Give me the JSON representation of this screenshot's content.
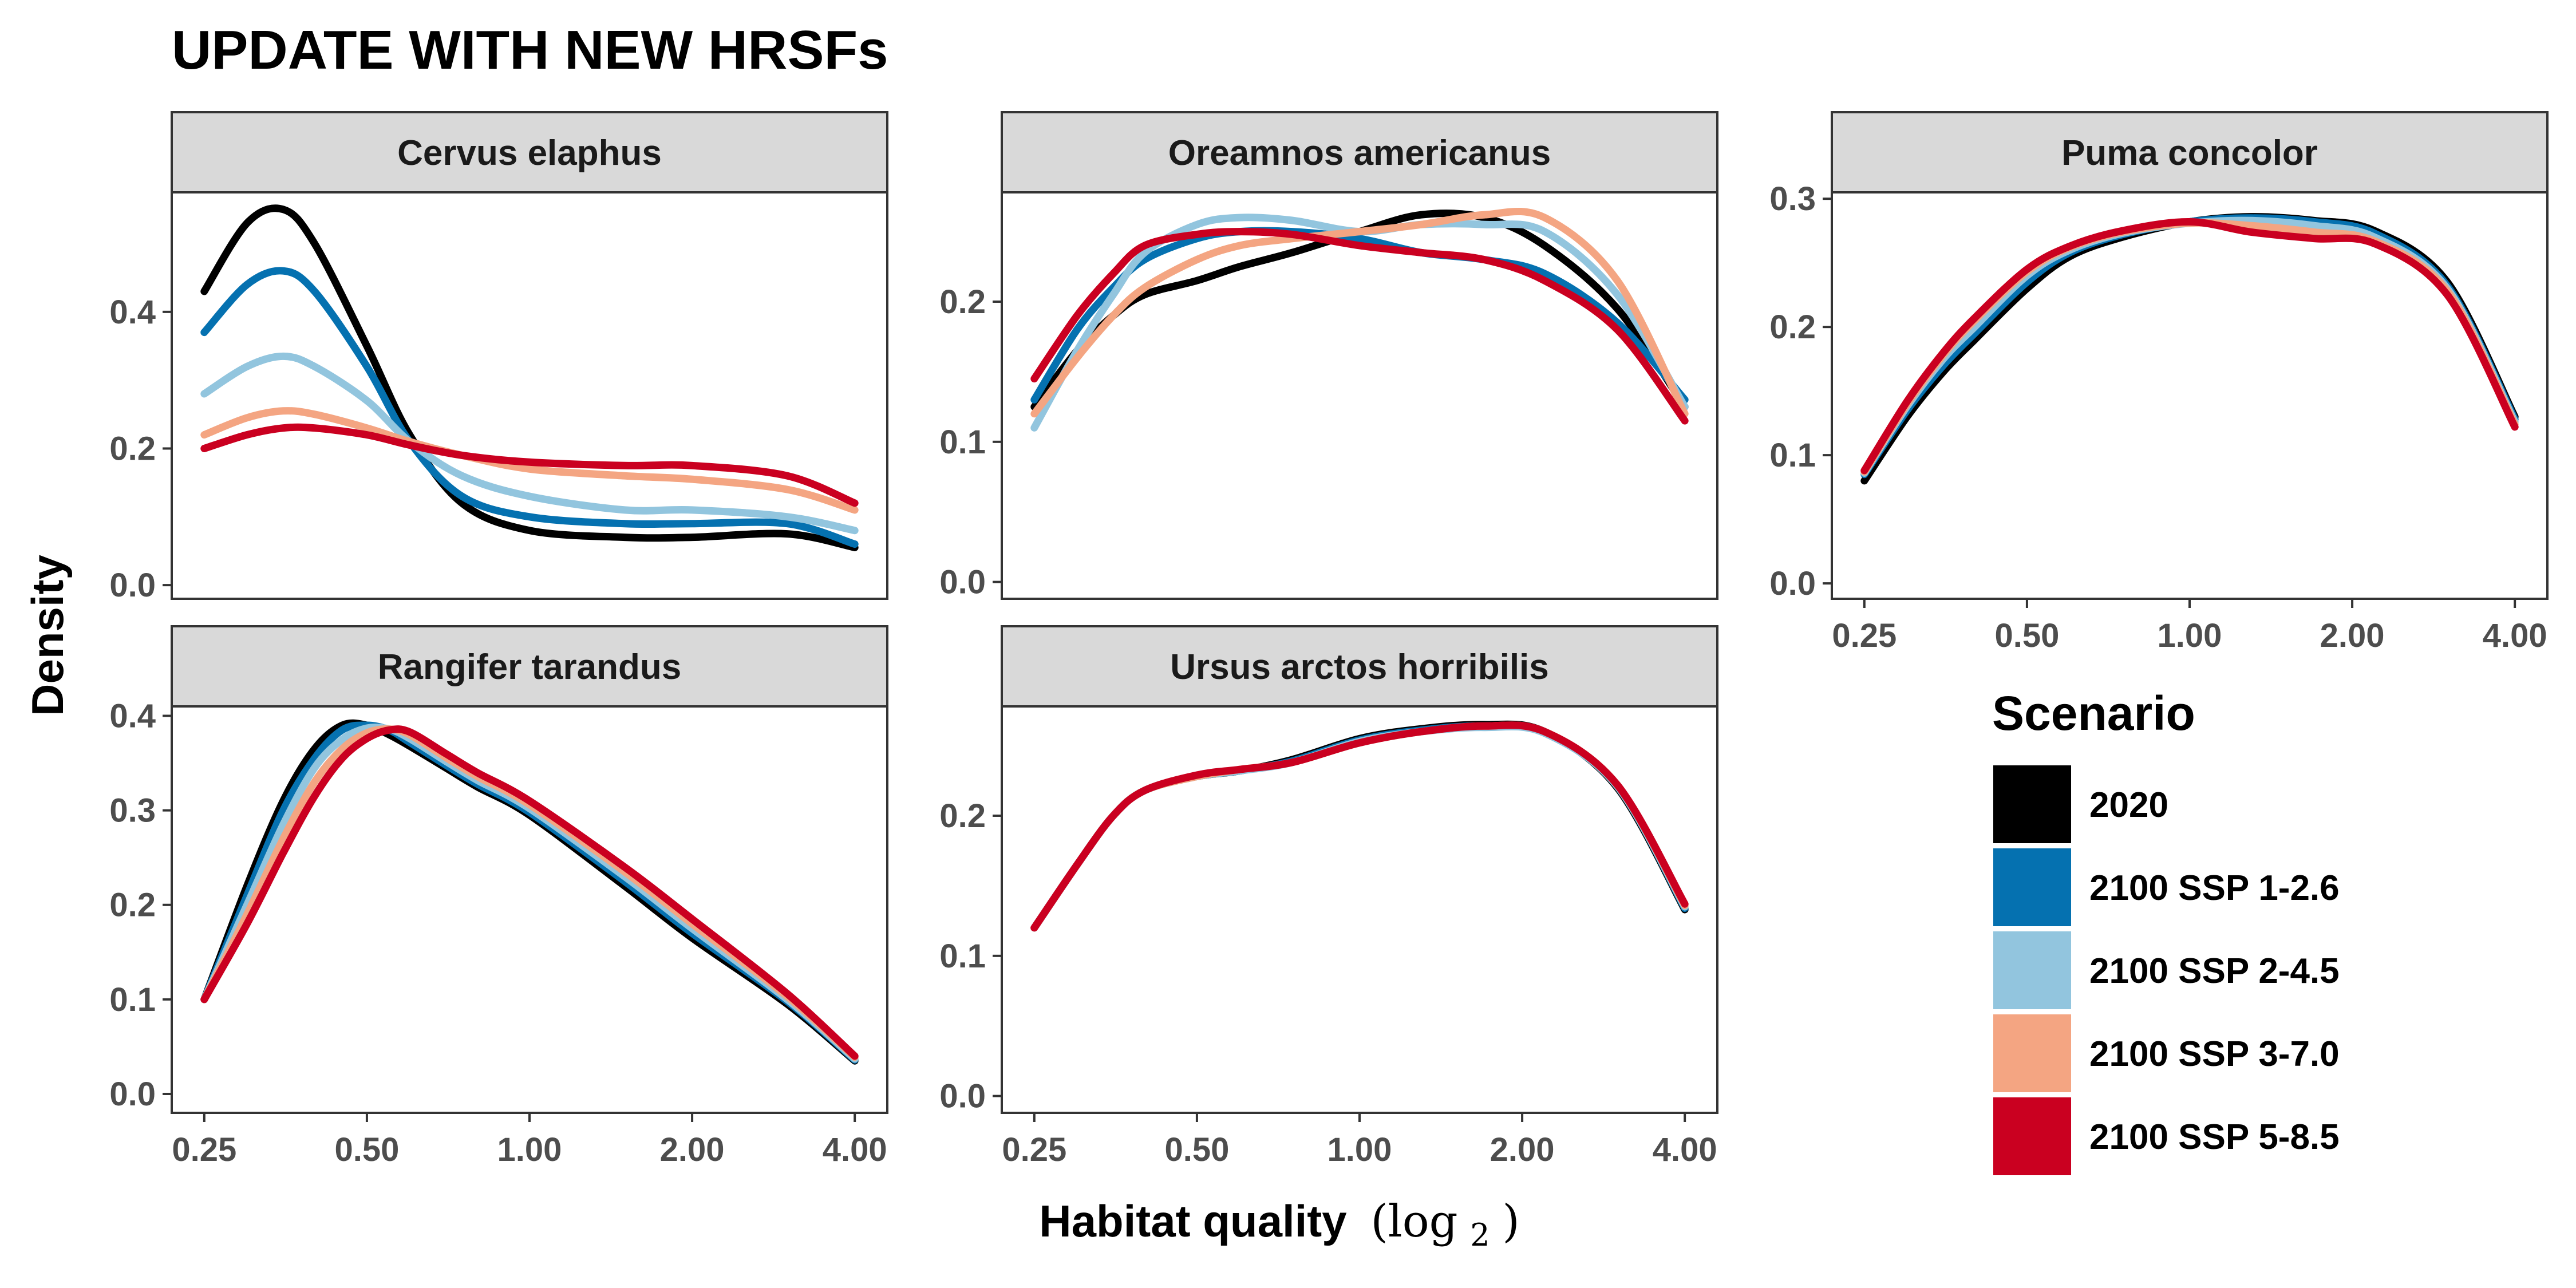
{
  "chart_data": {
    "type": "line",
    "title": "UPDATE WITH NEW HRSFs",
    "xlabel": "Habitat quality",
    "xlabel_math": "(log",
    "xlabel_sub": "2",
    "xlabel_close": ")",
    "ylabel": "Density",
    "x_scale": "log2",
    "x_ticks": [
      0.25,
      0.5,
      1,
      2,
      4
    ],
    "x_tick_labels": [
      "0.25",
      "0.50",
      "1.00",
      "2.00",
      "4.00"
    ],
    "legend": {
      "title": "Scenario",
      "position": "right",
      "entries": [
        {
          "label": "2020",
          "color": "#000000"
        },
        {
          "label": "2100 SSP 1-2.6",
          "color": "#0571b0"
        },
        {
          "label": "2100 SSP 2-4.5",
          "color": "#92c5de"
        },
        {
          "label": "2100 SSP 3-7.0",
          "color": "#f4a582"
        },
        {
          "label": "2100 SSP 5-8.5",
          "color": "#ca0020"
        }
      ]
    },
    "panels": [
      {
        "title": "Cervus elaphus",
        "ylim": [
          -0.02,
          0.575
        ],
        "y_ticks": [
          0,
          0.2,
          0.4
        ],
        "y_tick_labels": [
          "0.0",
          "0.2",
          "0.4"
        ],
        "x": [
          0.25,
          0.3,
          0.35,
          0.4,
          0.5,
          0.6,
          0.75,
          1.0,
          1.5,
          2.0,
          3.0,
          4.0
        ],
        "series": [
          {
            "name": "2020",
            "values": [
              0.43,
              0.53,
              0.55,
              0.5,
              0.35,
              0.22,
              0.12,
              0.08,
              0.07,
              0.07,
              0.075,
              0.055
            ]
          },
          {
            "name": "2100 SSP 1-2.6",
            "values": [
              0.37,
              0.44,
              0.46,
              0.43,
              0.32,
              0.21,
              0.13,
              0.1,
              0.09,
              0.09,
              0.09,
              0.06
            ]
          },
          {
            "name": "2100 SSP 2-4.5",
            "values": [
              0.28,
              0.32,
              0.335,
              0.32,
              0.27,
              0.21,
              0.16,
              0.13,
              0.11,
              0.11,
              0.1,
              0.08
            ]
          },
          {
            "name": "2100 SSP 3-7.0",
            "values": [
              0.22,
              0.245,
              0.255,
              0.25,
              0.23,
              0.21,
              0.19,
              0.17,
              0.16,
              0.155,
              0.14,
              0.11
            ]
          },
          {
            "name": "2100 SSP 5-8.5",
            "values": [
              0.2,
              0.22,
              0.23,
              0.23,
              0.22,
              0.205,
              0.19,
              0.18,
              0.175,
              0.175,
              0.16,
              0.12
            ]
          }
        ]
      },
      {
        "title": "Oreamnos americanus",
        "ylim": [
          -0.012,
          0.278
        ],
        "y_ticks": [
          0,
          0.1,
          0.2
        ],
        "y_tick_labels": [
          "0.0",
          "0.1",
          "0.2"
        ],
        "x": [
          0.25,
          0.3,
          0.35,
          0.4,
          0.5,
          0.6,
          0.75,
          1.0,
          1.3,
          1.7,
          2.2,
          3.0,
          4.0
        ],
        "series": [
          {
            "name": "2020",
            "values": [
              0.125,
              0.165,
              0.19,
              0.205,
              0.215,
              0.225,
              0.235,
              0.25,
              0.262,
              0.26,
              0.24,
              0.195,
              0.125
            ]
          },
          {
            "name": "2100 SSP 1-2.6",
            "values": [
              0.13,
              0.18,
              0.21,
              0.23,
              0.245,
              0.25,
              0.25,
              0.245,
              0.235,
              0.23,
              0.22,
              0.185,
              0.13
            ]
          },
          {
            "name": "2100 SSP 2-4.5",
            "values": [
              0.11,
              0.165,
              0.205,
              0.235,
              0.255,
              0.26,
              0.258,
              0.25,
              0.255,
              0.255,
              0.25,
              0.205,
              0.125
            ]
          },
          {
            "name": "2100 SSP 3-7.0",
            "values": [
              0.12,
              0.16,
              0.19,
              0.21,
              0.23,
              0.24,
              0.245,
              0.25,
              0.255,
              0.262,
              0.26,
              0.215,
              0.12
            ]
          },
          {
            "name": "2100 SSP 5-8.5",
            "values": [
              0.145,
              0.19,
              0.22,
              0.24,
              0.248,
              0.25,
              0.248,
              0.24,
              0.235,
              0.23,
              0.215,
              0.18,
              0.115
            ]
          }
        ]
      },
      {
        "title": "Puma concolor",
        "ylim": [
          -0.012,
          0.305
        ],
        "y_ticks": [
          0,
          0.1,
          0.2,
          0.3
        ],
        "y_tick_labels": [
          "0.0",
          "0.1",
          "0.2",
          "0.3"
        ],
        "x": [
          0.25,
          0.3,
          0.35,
          0.4,
          0.5,
          0.6,
          0.75,
          1.0,
          1.3,
          1.7,
          2.2,
          3.0,
          4.0
        ],
        "series": [
          {
            "name": "2020",
            "values": [
              0.08,
              0.13,
              0.165,
              0.19,
              0.23,
              0.255,
              0.27,
              0.282,
              0.286,
              0.283,
              0.275,
              0.235,
              0.13
            ]
          },
          {
            "name": "2100 SSP 1-2.6",
            "values": [
              0.085,
              0.135,
              0.17,
              0.195,
              0.235,
              0.258,
              0.272,
              0.282,
              0.285,
              0.282,
              0.273,
              0.232,
              0.128
            ]
          },
          {
            "name": "2100 SSP 2-4.5",
            "values": [
              0.086,
              0.138,
              0.175,
              0.2,
              0.24,
              0.26,
              0.273,
              0.281,
              0.283,
              0.279,
              0.27,
              0.23,
              0.126
            ]
          },
          {
            "name": "2100 SSP 3-7.0",
            "values": [
              0.087,
              0.14,
              0.178,
              0.205,
              0.243,
              0.262,
              0.274,
              0.281,
              0.279,
              0.274,
              0.267,
              0.228,
              0.124
            ]
          },
          {
            "name": "2100 SSP 5-8.5",
            "values": [
              0.088,
              0.142,
              0.18,
              0.207,
              0.245,
              0.263,
              0.275,
              0.282,
              0.274,
              0.269,
              0.265,
              0.225,
              0.122
            ]
          }
        ]
      },
      {
        "title": "Rangifer tarandus",
        "ylim": [
          -0.02,
          0.41
        ],
        "y_ticks": [
          0,
          0.1,
          0.2,
          0.3,
          0.4
        ],
        "y_tick_labels": [
          "0.0",
          "0.1",
          "0.2",
          "0.3",
          "0.4"
        ],
        "x": [
          0.25,
          0.3,
          0.35,
          0.4,
          0.45,
          0.5,
          0.55,
          0.6,
          0.7,
          0.8,
          1.0,
          1.5,
          2.0,
          3.0,
          4.0
        ],
        "series": [
          {
            "name": "2020",
            "values": [
              0.1,
              0.22,
              0.31,
              0.365,
              0.39,
              0.39,
              0.38,
              0.368,
              0.345,
              0.325,
              0.295,
              0.22,
              0.165,
              0.095,
              0.035
            ]
          },
          {
            "name": "2100 SSP 1-2.6",
            "values": [
              0.1,
              0.21,
              0.3,
              0.355,
              0.385,
              0.39,
              0.385,
              0.372,
              0.348,
              0.328,
              0.298,
              0.225,
              0.17,
              0.098,
              0.036
            ]
          },
          {
            "name": "2100 SSP 2-4.5",
            "values": [
              0.1,
              0.2,
              0.285,
              0.345,
              0.375,
              0.387,
              0.386,
              0.376,
              0.352,
              0.332,
              0.302,
              0.23,
              0.175,
              0.1,
              0.037
            ]
          },
          {
            "name": "2100 SSP 3-7.0",
            "values": [
              0.1,
              0.19,
              0.27,
              0.33,
              0.365,
              0.382,
              0.386,
              0.38,
              0.356,
              0.336,
              0.306,
              0.235,
              0.18,
              0.103,
              0.039
            ]
          },
          {
            "name": "2100 SSP 5-8.5",
            "values": [
              0.1,
              0.18,
              0.255,
              0.315,
              0.355,
              0.376,
              0.385,
              0.383,
              0.36,
              0.34,
              0.31,
              0.24,
              0.185,
              0.106,
              0.04
            ]
          }
        ]
      },
      {
        "title": "Ursus arctos horribilis",
        "ylim": [
          -0.012,
          0.278
        ],
        "y_ticks": [
          0,
          0.1,
          0.2
        ],
        "y_tick_labels": [
          "0.0",
          "0.1",
          "0.2"
        ],
        "x": [
          0.25,
          0.3,
          0.35,
          0.4,
          0.5,
          0.6,
          0.75,
          1.0,
          1.3,
          1.7,
          2.2,
          3.0,
          4.0
        ],
        "series": [
          {
            "name": "2020",
            "values": [
              0.12,
              0.165,
              0.2,
              0.218,
              0.228,
              0.232,
              0.24,
              0.255,
              0.262,
              0.265,
              0.26,
              0.22,
              0.133
            ]
          },
          {
            "name": "2100 SSP 1-2.6",
            "values": [
              0.12,
              0.165,
              0.2,
              0.218,
              0.228,
              0.232,
              0.239,
              0.254,
              0.261,
              0.264,
              0.259,
              0.221,
              0.134
            ]
          },
          {
            "name": "2100 SSP 2-4.5",
            "values": [
              0.12,
              0.165,
              0.2,
              0.218,
              0.228,
              0.232,
              0.238,
              0.253,
              0.26,
              0.263,
              0.259,
              0.221,
              0.135
            ]
          },
          {
            "name": "2100 SSP 3-7.0",
            "values": [
              0.12,
              0.165,
              0.2,
              0.218,
              0.228,
              0.233,
              0.238,
              0.252,
              0.26,
              0.264,
              0.26,
              0.222,
              0.136
            ]
          },
          {
            "name": "2100 SSP 5-8.5",
            "values": [
              0.12,
              0.165,
              0.2,
              0.218,
              0.229,
              0.233,
              0.238,
              0.252,
              0.26,
              0.264,
              0.26,
              0.222,
              0.137
            ]
          }
        ]
      }
    ]
  }
}
